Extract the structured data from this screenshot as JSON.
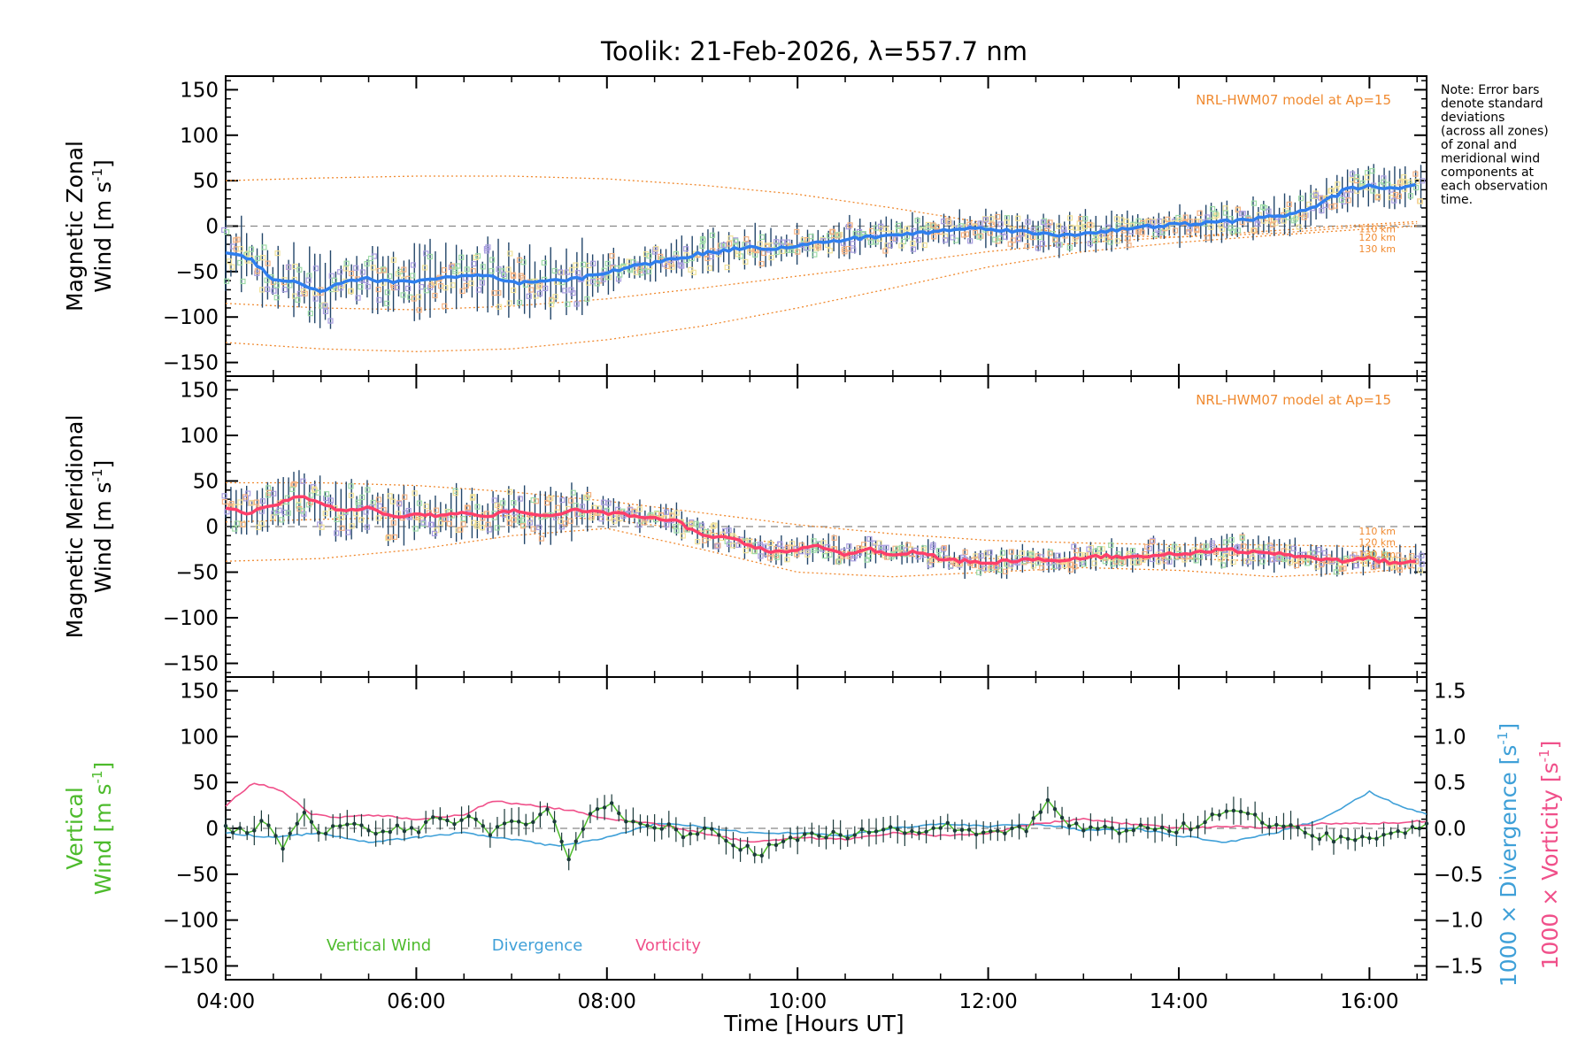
{
  "title": "Toolik: 21-Feb-2026, λ=557.7 nm",
  "note_lines": [
    "Note: Error bars",
    "denote standard",
    "deviations",
    "(across all zones)",
    "of zonal and",
    "meridional wind",
    "components at",
    "each observation",
    "time."
  ],
  "colors": {
    "zonal": "#2f7fef",
    "meridional": "#ff3f6a",
    "vertical": "#4dbb2c",
    "divergence": "#3fa0d8",
    "vorticity": "#f0508a",
    "model": "#f08a30",
    "errbar": "#23466a",
    "scatter_purple": "#a99ee0",
    "scatter_orange": "#f5b383",
    "scatter_yellow": "#f2e39a",
    "scatter_green": "#9fdca8",
    "zero_line": "#888888"
  },
  "chart_data": [
    {
      "type": "line",
      "panel": "zonal",
      "ylabel_line1": "Magnetic Zonal",
      "ylabel_line2": "Wind [m s",
      "ylabel_sup": "-1",
      "ylabel_close": "]",
      "ylim": [
        -165,
        165
      ],
      "yticks": [
        150,
        100,
        50,
        0,
        -50,
        -100,
        -150
      ],
      "ytick_labels": [
        "150",
        "100",
        "50",
        "0",
        "−50",
        "−100",
        "−150"
      ],
      "model_label": "NRL-HWM07 model at Ap=15",
      "altitude_labels": [
        "110 km",
        "120 km",
        "130 km"
      ],
      "altitude_values": [
        -3,
        -12,
        -25
      ],
      "series": [
        {
          "name": "Zonal wind",
          "x": [
            4.0,
            4.25,
            4.5,
            4.75,
            5.0,
            5.25,
            5.5,
            5.75,
            6.0,
            6.25,
            6.5,
            6.75,
            7.0,
            7.25,
            7.5,
            7.75,
            8.0,
            8.25,
            8.5,
            8.75,
            9.0,
            9.25,
            9.5,
            9.75,
            10.0,
            10.25,
            10.5,
            10.75,
            11.0,
            11.25,
            11.5,
            11.75,
            12.0,
            12.25,
            12.5,
            12.75,
            13.0,
            13.25,
            13.5,
            13.75,
            14.0,
            14.25,
            14.5,
            14.75,
            15.0,
            15.25,
            15.5,
            15.75,
            16.0,
            16.25,
            16.5
          ],
          "y": [
            -30,
            -35,
            -58,
            -62,
            -72,
            -60,
            -58,
            -62,
            -60,
            -57,
            -55,
            -55,
            -63,
            -62,
            -60,
            -57,
            -50,
            -45,
            -40,
            -35,
            -30,
            -27,
            -22,
            -25,
            -22,
            -18,
            -15,
            -12,
            -10,
            -8,
            -5,
            -3,
            -2,
            -5,
            -8,
            -10,
            -8,
            -5,
            -3,
            0,
            2,
            3,
            5,
            8,
            10,
            15,
            25,
            40,
            45,
            40,
            45
          ]
        }
      ],
      "model_curves": [
        {
          "name": "upper envelope",
          "x": [
            4.0,
            5.0,
            6.0,
            7.0,
            8.0,
            9.0,
            10.0,
            11.0,
            12.0,
            13.0,
            14.0,
            15.0,
            16.0,
            16.5
          ],
          "y": [
            50,
            53,
            55,
            55,
            52,
            45,
            35,
            20,
            3,
            -10,
            -12,
            -8,
            0,
            3
          ]
        },
        {
          "name": "lower envelope",
          "x": [
            4.0,
            5.0,
            6.0,
            7.0,
            8.0,
            9.0,
            10.0,
            11.0,
            12.0,
            13.0,
            14.0,
            15.0,
            16.0,
            16.5
          ],
          "y": [
            -128,
            -135,
            -138,
            -135,
            -125,
            -110,
            -90,
            -68,
            -45,
            -28,
            -18,
            -10,
            -3,
            0
          ]
        },
        {
          "name": "middle curve",
          "x": [
            4.0,
            5.0,
            6.0,
            7.0,
            8.0,
            9.0,
            10.0,
            11.0,
            12.0,
            13.0,
            14.0,
            15.0,
            16.0,
            16.5
          ],
          "y": [
            -85,
            -90,
            -92,
            -88,
            -80,
            -68,
            -55,
            -42,
            -28,
            -18,
            -12,
            -5,
            2,
            5
          ]
        }
      ]
    },
    {
      "type": "line",
      "panel": "meridional",
      "ylabel_line1": "Magnetic Meridional",
      "ylabel_line2": "Wind [m s",
      "ylabel_sup": "-1",
      "ylabel_close": "]",
      "ylim": [
        -165,
        165
      ],
      "yticks": [
        150,
        100,
        50,
        0,
        -50,
        -100,
        -150
      ],
      "ytick_labels": [
        "150",
        "100",
        "50",
        "0",
        "−50",
        "−100",
        "−150"
      ],
      "model_label": "NRL-HWM07 model at Ap=15",
      "altitude_labels": [
        "110 km",
        "120 km",
        "130 km"
      ],
      "altitude_values": [
        -5,
        -17,
        -30
      ],
      "series": [
        {
          "name": "Meridional wind",
          "x": [
            4.0,
            4.25,
            4.5,
            4.75,
            5.0,
            5.25,
            5.5,
            5.75,
            6.0,
            6.25,
            6.5,
            6.75,
            7.0,
            7.25,
            7.5,
            7.75,
            8.0,
            8.25,
            8.5,
            8.75,
            9.0,
            9.25,
            9.5,
            9.75,
            10.0,
            10.25,
            10.5,
            10.75,
            11.0,
            11.25,
            11.5,
            11.75,
            12.0,
            12.25,
            12.5,
            12.75,
            13.0,
            13.25,
            13.5,
            13.75,
            14.0,
            14.25,
            14.5,
            14.75,
            15.0,
            15.25,
            15.5,
            15.75,
            16.0,
            16.25,
            16.5
          ],
          "y": [
            20,
            15,
            22,
            35,
            25,
            15,
            22,
            10,
            15,
            12,
            15,
            10,
            18,
            12,
            15,
            18,
            15,
            12,
            10,
            5,
            -10,
            -12,
            -20,
            -28,
            -25,
            -22,
            -30,
            -25,
            -30,
            -28,
            -35,
            -38,
            -40,
            -38,
            -35,
            -38,
            -35,
            -32,
            -35,
            -30,
            -30,
            -28,
            -25,
            -28,
            -30,
            -32,
            -35,
            -38,
            -35,
            -40,
            -38
          ]
        }
      ],
      "model_curves": [
        {
          "name": "upper envelope",
          "x": [
            4.0,
            5.0,
            6.0,
            7.0,
            8.0,
            9.0,
            10.0,
            11.0,
            12.0,
            13.0,
            14.0,
            15.0,
            16.0,
            16.5
          ],
          "y": [
            48,
            48,
            45,
            38,
            28,
            15,
            2,
            -8,
            -15,
            -18,
            -20,
            -20,
            -22,
            -22
          ]
        },
        {
          "name": "lower envelope",
          "x": [
            4.0,
            5.0,
            6.0,
            7.0,
            8.0,
            9.0,
            10.0,
            11.0,
            12.0,
            13.0,
            14.0,
            15.0,
            16.0,
            16.5
          ],
          "y": [
            -38,
            -35,
            -25,
            -10,
            -2,
            -25,
            -50,
            -55,
            -50,
            -45,
            -48,
            -55,
            -50,
            -45
          ]
        },
        {
          "name": "middle curve",
          "x": [
            4.0,
            5.0,
            6.0,
            7.0,
            8.0,
            9.0,
            10.0,
            11.0,
            12.0,
            13.0,
            14.0,
            15.0,
            16.0,
            16.5
          ],
          "y": [
            5,
            8,
            10,
            12,
            8,
            -5,
            -22,
            -32,
            -35,
            -35,
            -35,
            -38,
            -40,
            -38
          ]
        }
      ]
    },
    {
      "type": "line",
      "panel": "vertical",
      "ylabel_line1": "Vertical",
      "ylabel_line2": "Wind [m s",
      "ylabel_sup": "-1",
      "ylabel_close": "]",
      "ylim": [
        -165,
        165
      ],
      "yticks": [
        150,
        100,
        50,
        0,
        -50,
        -100,
        -150
      ],
      "ytick_labels": [
        "150",
        "100",
        "50",
        "0",
        "−50",
        "−100",
        "−150"
      ],
      "xlabel": "Time [Hours UT]",
      "xlim": [
        4.0,
        16.6
      ],
      "xticks": [
        4,
        6,
        8,
        10,
        12,
        14,
        16
      ],
      "xtick_labels": [
        "04:00",
        "06:00",
        "08:00",
        "10:00",
        "12:00",
        "14:00",
        "16:00"
      ],
      "right_axis": {
        "ylim": [
          -1.65,
          1.65
        ],
        "yticks": [
          1.5,
          1.0,
          0.5,
          0.0,
          -0.5,
          -1.0,
          -1.5
        ],
        "ytick_labels": [
          "1.5",
          "1.0",
          "0.5",
          "0.0",
          "−0.5",
          "−1.0",
          "−1.5"
        ],
        "label_divergence": "1000 × Divergence [s",
        "label_vorticity": "1000 × Vorticity [s",
        "label_sup": "-1",
        "label_close": "]"
      },
      "legend": [
        "Vertical Wind",
        "Divergence",
        "Vorticity"
      ],
      "series": [
        {
          "name": "Vertical Wind",
          "axis": "left",
          "x": [
            4.0,
            4.2,
            4.4,
            4.6,
            4.8,
            5.0,
            5.2,
            5.4,
            5.6,
            5.8,
            6.0,
            6.2,
            6.4,
            6.6,
            6.8,
            7.0,
            7.2,
            7.4,
            7.6,
            7.8,
            8.0,
            8.2,
            8.4,
            8.6,
            8.8,
            9.0,
            9.2,
            9.4,
            9.6,
            9.8,
            10.0,
            10.2,
            10.4,
            10.6,
            10.8,
            11.0,
            11.2,
            11.4,
            11.6,
            11.8,
            12.0,
            12.2,
            12.4,
            12.6,
            12.8,
            13.0,
            13.2,
            13.4,
            13.6,
            13.8,
            14.0,
            14.2,
            14.4,
            14.6,
            14.8,
            15.0,
            15.2,
            15.4,
            15.6,
            15.8,
            16.0,
            16.2,
            16.4,
            16.6
          ],
          "y": [
            0,
            -5,
            10,
            -20,
            15,
            -5,
            5,
            10,
            -10,
            5,
            -5,
            10,
            5,
            15,
            -5,
            5,
            10,
            20,
            -30,
            10,
            30,
            5,
            0,
            5,
            -5,
            0,
            -5,
            -20,
            -30,
            -15,
            -10,
            -5,
            -8,
            -5,
            0,
            0,
            -2,
            0,
            3,
            -5,
            0,
            -5,
            0,
            30,
            5,
            0,
            0,
            -3,
            0,
            2,
            0,
            5,
            20,
            15,
            10,
            5,
            0,
            -5,
            -10,
            -15,
            -10,
            -5,
            0,
            5
          ]
        },
        {
          "name": "Divergence",
          "axis": "right",
          "x": [
            4.0,
            4.5,
            5.0,
            5.5,
            6.0,
            6.5,
            7.0,
            7.5,
            8.0,
            8.5,
            9.0,
            9.5,
            10.0,
            10.5,
            11.0,
            11.5,
            12.0,
            12.5,
            13.0,
            13.5,
            14.0,
            14.5,
            15.0,
            15.5,
            16.0,
            16.3,
            16.6
          ],
          "y": [
            -0.05,
            -0.1,
            -0.05,
            -0.15,
            -0.1,
            -0.05,
            -0.12,
            -0.2,
            -0.1,
            0.05,
            0.02,
            -0.05,
            -0.05,
            -0.08,
            0.0,
            0.05,
            0.02,
            0.05,
            -0.02,
            0.0,
            -0.08,
            -0.15,
            -0.05,
            0.1,
            0.4,
            0.25,
            0.15
          ]
        },
        {
          "name": "Vorticity",
          "axis": "right",
          "x": [
            4.0,
            4.3,
            4.6,
            4.9,
            5.2,
            5.5,
            6.0,
            6.5,
            6.8,
            7.2,
            7.6,
            8.0,
            8.5,
            9.0,
            9.5,
            10.0,
            10.5,
            11.0,
            11.5,
            12.0,
            12.5,
            13.0,
            13.5,
            14.0,
            14.5,
            15.0,
            15.5,
            16.0,
            16.6
          ],
          "y": [
            0.25,
            0.5,
            0.4,
            0.15,
            0.12,
            0.15,
            0.1,
            0.15,
            0.3,
            0.25,
            0.2,
            0.1,
            0.05,
            -0.05,
            -0.15,
            -0.1,
            -0.12,
            -0.05,
            -0.08,
            -0.05,
            0.05,
            0.1,
            0.05,
            0.0,
            0.02,
            0.0,
            0.05,
            0.05,
            0.08
          ]
        }
      ]
    }
  ]
}
